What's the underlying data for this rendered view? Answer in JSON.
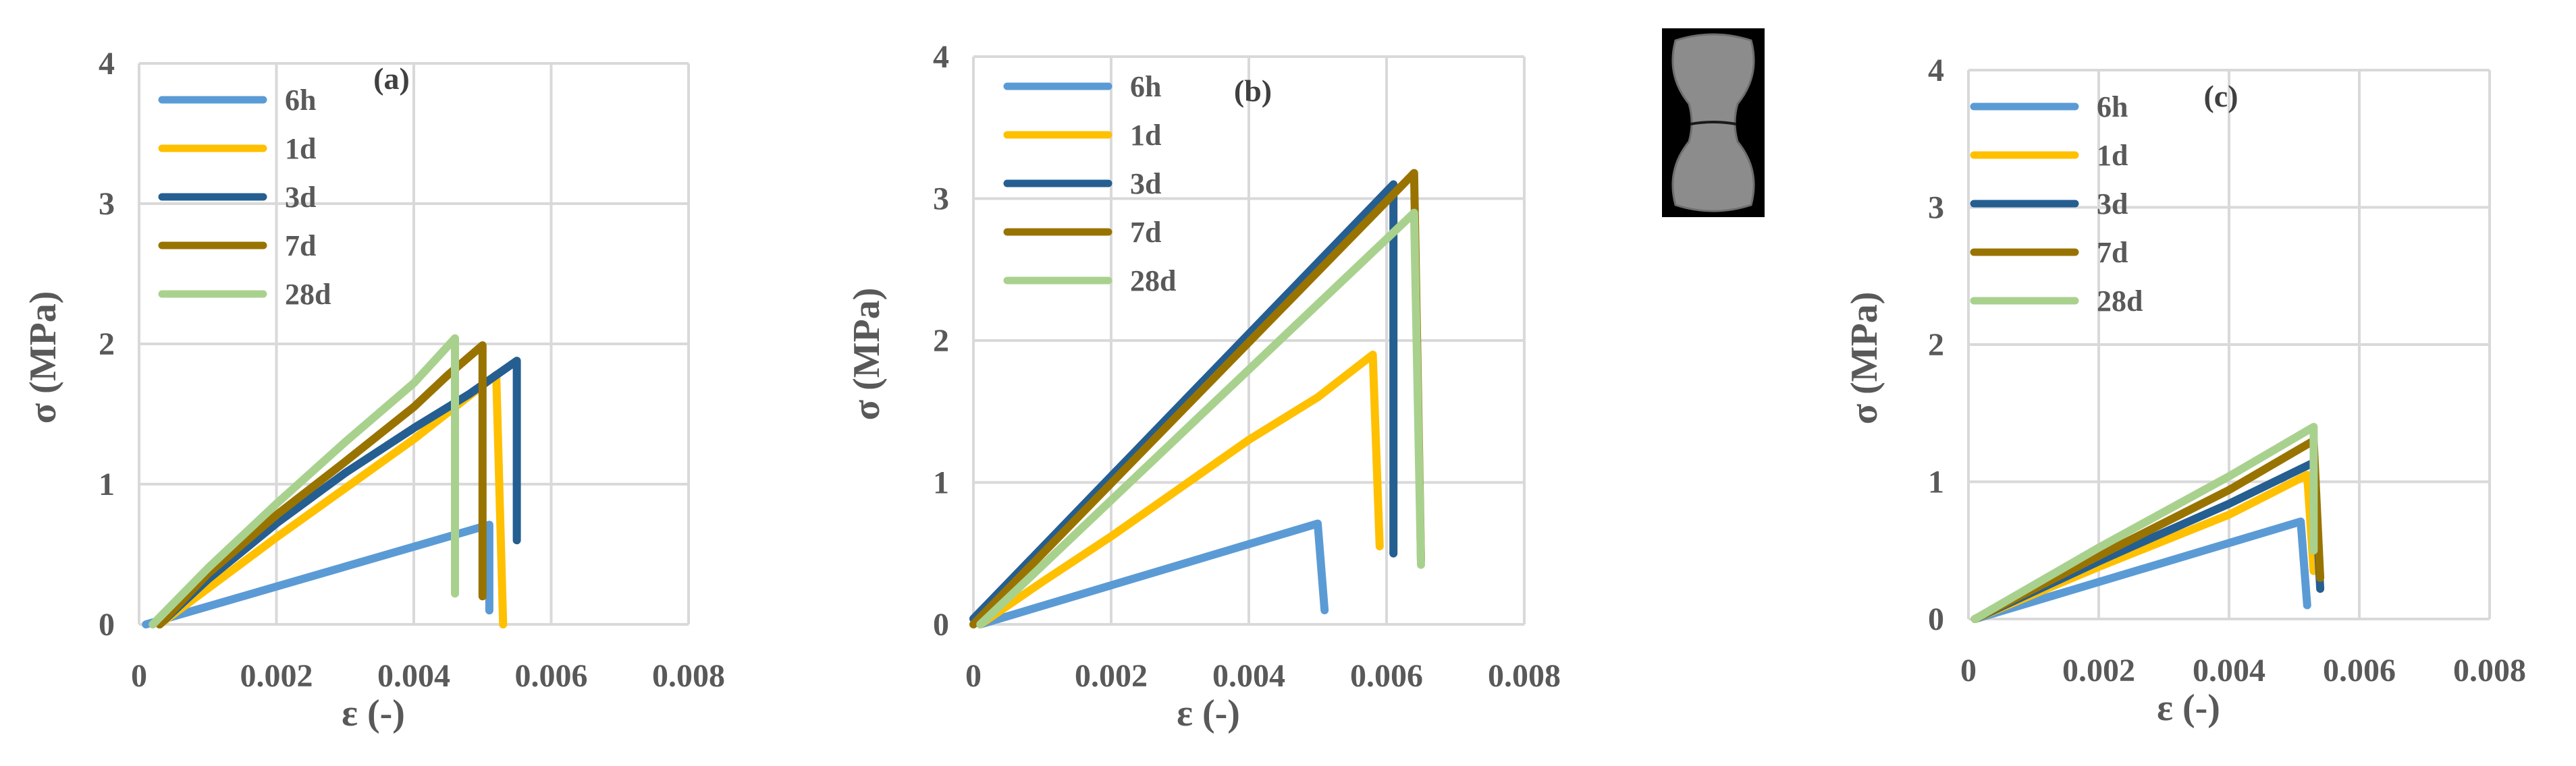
{
  "chart_data": [
    {
      "type": "line",
      "panel_label": "(a)",
      "xlabel": "ε (-)",
      "ylabel": "σ (MPa)",
      "xlim": [
        0,
        0.008
      ],
      "ylim": [
        0,
        4
      ],
      "x_ticks": [
        "0",
        "0.002",
        "0.004",
        "0.006",
        "0.008"
      ],
      "y_ticks": [
        "0",
        "1",
        "2",
        "3",
        "4"
      ],
      "grid": true,
      "legend_position": "top-left",
      "series": [
        {
          "name": "6h",
          "color": "#5B9BD5",
          "points": [
            [
              0.0001,
              0
            ],
            [
              0.0051,
              0.71
            ],
            [
              0.0051,
              0.1
            ]
          ]
        },
        {
          "name": "1d",
          "color": "#FFC000",
          "points": [
            [
              0.0003,
              0
            ],
            [
              0.002,
              0.62
            ],
            [
              0.004,
              1.32
            ],
            [
              0.0052,
              1.78
            ],
            [
              0.0053,
              0.0
            ]
          ]
        },
        {
          "name": "3d",
          "color": "#255E91",
          "points": [
            [
              0.0003,
              0
            ],
            [
              0.001,
              0.32
            ],
            [
              0.002,
              0.72
            ],
            [
              0.003,
              1.08
            ],
            [
              0.004,
              1.4
            ],
            [
              0.0048,
              1.64
            ],
            [
              0.0055,
              1.88
            ],
            [
              0.0055,
              0.6
            ]
          ]
        },
        {
          "name": "7d",
          "color": "#997300",
          "points": [
            [
              0.0003,
              0
            ],
            [
              0.001,
              0.36
            ],
            [
              0.002,
              0.78
            ],
            [
              0.003,
              1.16
            ],
            [
              0.004,
              1.55
            ],
            [
              0.0045,
              1.78
            ],
            [
              0.005,
              1.99
            ],
            [
              0.005,
              0.2
            ]
          ]
        },
        {
          "name": "28d",
          "color": "#A9D18E",
          "points": [
            [
              0.0002,
              0
            ],
            [
              0.001,
              0.4
            ],
            [
              0.002,
              0.86
            ],
            [
              0.003,
              1.3
            ],
            [
              0.004,
              1.72
            ],
            [
              0.0046,
              2.04
            ],
            [
              0.0046,
              0.22
            ]
          ]
        }
      ]
    },
    {
      "type": "line",
      "panel_label": "(b)",
      "xlabel": "ε (-)",
      "ylabel": "σ (MPa)",
      "xlim": [
        0,
        0.008
      ],
      "ylim": [
        0,
        4
      ],
      "x_ticks": [
        "0",
        "0.002",
        "0.004",
        "0.006",
        "0.008"
      ],
      "y_ticks": [
        "0",
        "1",
        "2",
        "3",
        "4"
      ],
      "grid": true,
      "legend_position": "top-left",
      "series": [
        {
          "name": "6h",
          "color": "#5B9BD5",
          "points": [
            [
              0.0001,
              0
            ],
            [
              0.005,
              0.71
            ],
            [
              0.0051,
              0.1
            ]
          ]
        },
        {
          "name": "1d",
          "color": "#FFC000",
          "points": [
            [
              0.0001,
              0
            ],
            [
              0.001,
              0.3
            ],
            [
              0.002,
              0.62
            ],
            [
              0.003,
              0.96
            ],
            [
              0.004,
              1.3
            ],
            [
              0.005,
              1.6
            ],
            [
              0.0058,
              1.9
            ],
            [
              0.0059,
              0.55
            ]
          ]
        },
        {
          "name": "3d",
          "color": "#255E91",
          "points": [
            [
              0,
              0.04
            ],
            [
              0.0061,
              3.1
            ],
            [
              0.0061,
              0.5
            ]
          ]
        },
        {
          "name": "7d",
          "color": "#997300",
          "points": [
            [
              0,
              0
            ],
            [
              0.0064,
              3.18
            ],
            [
              0.0065,
              0.45
            ]
          ]
        },
        {
          "name": "28d",
          "color": "#A9D18E",
          "points": [
            [
              0.0001,
              0
            ],
            [
              0.0064,
              2.9
            ],
            [
              0.0065,
              0.42
            ]
          ]
        }
      ]
    },
    {
      "type": "line",
      "panel_label": "(c)",
      "xlabel": "ε (-)",
      "ylabel": "σ (MPa)",
      "xlim": [
        0,
        0.008
      ],
      "ylim": [
        0,
        4
      ],
      "x_ticks": [
        "0",
        "0.002",
        "0.004",
        "0.006",
        "0.008"
      ],
      "y_ticks": [
        "0",
        "1",
        "2",
        "3",
        "4"
      ],
      "grid": true,
      "legend_position": "top-left",
      "series": [
        {
          "name": "6h",
          "color": "#5B9BD5",
          "points": [
            [
              0.0001,
              0
            ],
            [
              0.0051,
              0.71
            ],
            [
              0.0052,
              0.1
            ]
          ]
        },
        {
          "name": "1d",
          "color": "#FFC000",
          "points": [
            [
              0.0001,
              0
            ],
            [
              0.002,
              0.38
            ],
            [
              0.004,
              0.76
            ],
            [
              0.0052,
              1.05
            ],
            [
              0.0053,
              0.35
            ]
          ]
        },
        {
          "name": "3d",
          "color": "#255E91",
          "points": [
            [
              0.0001,
              0
            ],
            [
              0.002,
              0.42
            ],
            [
              0.004,
              0.84
            ],
            [
              0.0053,
              1.14
            ],
            [
              0.0054,
              0.22
            ]
          ]
        },
        {
          "name": "7d",
          "color": "#997300",
          "points": [
            [
              0.0001,
              0
            ],
            [
              0.002,
              0.46
            ],
            [
              0.004,
              0.94
            ],
            [
              0.0053,
              1.3
            ],
            [
              0.0054,
              0.3
            ]
          ]
        },
        {
          "name": "28d",
          "color": "#A9D18E",
          "points": [
            [
              0.0001,
              0
            ],
            [
              0.002,
              0.52
            ],
            [
              0.004,
              1.04
            ],
            [
              0.0053,
              1.4
            ],
            [
              0.0053,
              0.5
            ]
          ]
        }
      ]
    }
  ]
}
